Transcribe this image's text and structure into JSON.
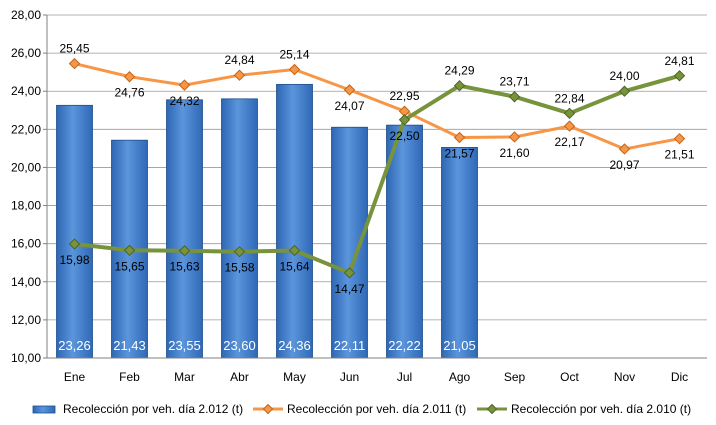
{
  "chart_data": {
    "type": "bar",
    "title": "",
    "xlabel": "",
    "ylabel": "",
    "categories": [
      "Ene",
      "Feb",
      "Mar",
      "Abr",
      "May",
      "Jun",
      "Jul",
      "Ago",
      "Sep",
      "Oct",
      "Nov",
      "Dic"
    ],
    "ylim": [
      10,
      28
    ],
    "yticks": [
      "10,00",
      "12,00",
      "14,00",
      "16,00",
      "18,00",
      "20,00",
      "22,00",
      "24,00",
      "26,00",
      "28,00"
    ],
    "grid": true,
    "legend_position": "bottom",
    "series": [
      {
        "name": "Recolección por veh. día 2.012 (t)",
        "type": "bar",
        "color": "#3F7BC9",
        "values": [
          23.26,
          21.43,
          23.55,
          23.6,
          24.36,
          22.11,
          22.22,
          21.05,
          null,
          null,
          null,
          null
        ],
        "labels": [
          "23,26",
          "21,43",
          "23,55",
          "23,60",
          "24,36",
          "22,11",
          "22,22",
          "21,05",
          "",
          "",
          "",
          ""
        ]
      },
      {
        "name": "Recolección por veh. día 2.011 (t)",
        "type": "line",
        "color": "#F79646",
        "values": [
          25.45,
          24.76,
          24.32,
          24.84,
          25.14,
          24.07,
          22.95,
          21.57,
          21.6,
          22.17,
          20.97,
          21.51
        ],
        "labels": [
          "25,45",
          "24,76",
          "24,32",
          "24,84",
          "25,14",
          "24,07",
          "22,95",
          "21,57",
          "21,60",
          "22,17",
          "20,97",
          "21,51"
        ]
      },
      {
        "name": "Recolección por veh. día 2.010 (t)",
        "type": "line",
        "color": "#77933C",
        "values": [
          15.98,
          15.65,
          15.63,
          15.58,
          15.64,
          14.47,
          22.5,
          24.29,
          23.71,
          22.84,
          24.0,
          24.81
        ],
        "labels": [
          "15,98",
          "15,65",
          "15,63",
          "15,58",
          "15,64",
          "14,47",
          "22,50",
          "24,29",
          "23,71",
          "22,84",
          "24,00",
          "24,81"
        ]
      }
    ]
  }
}
